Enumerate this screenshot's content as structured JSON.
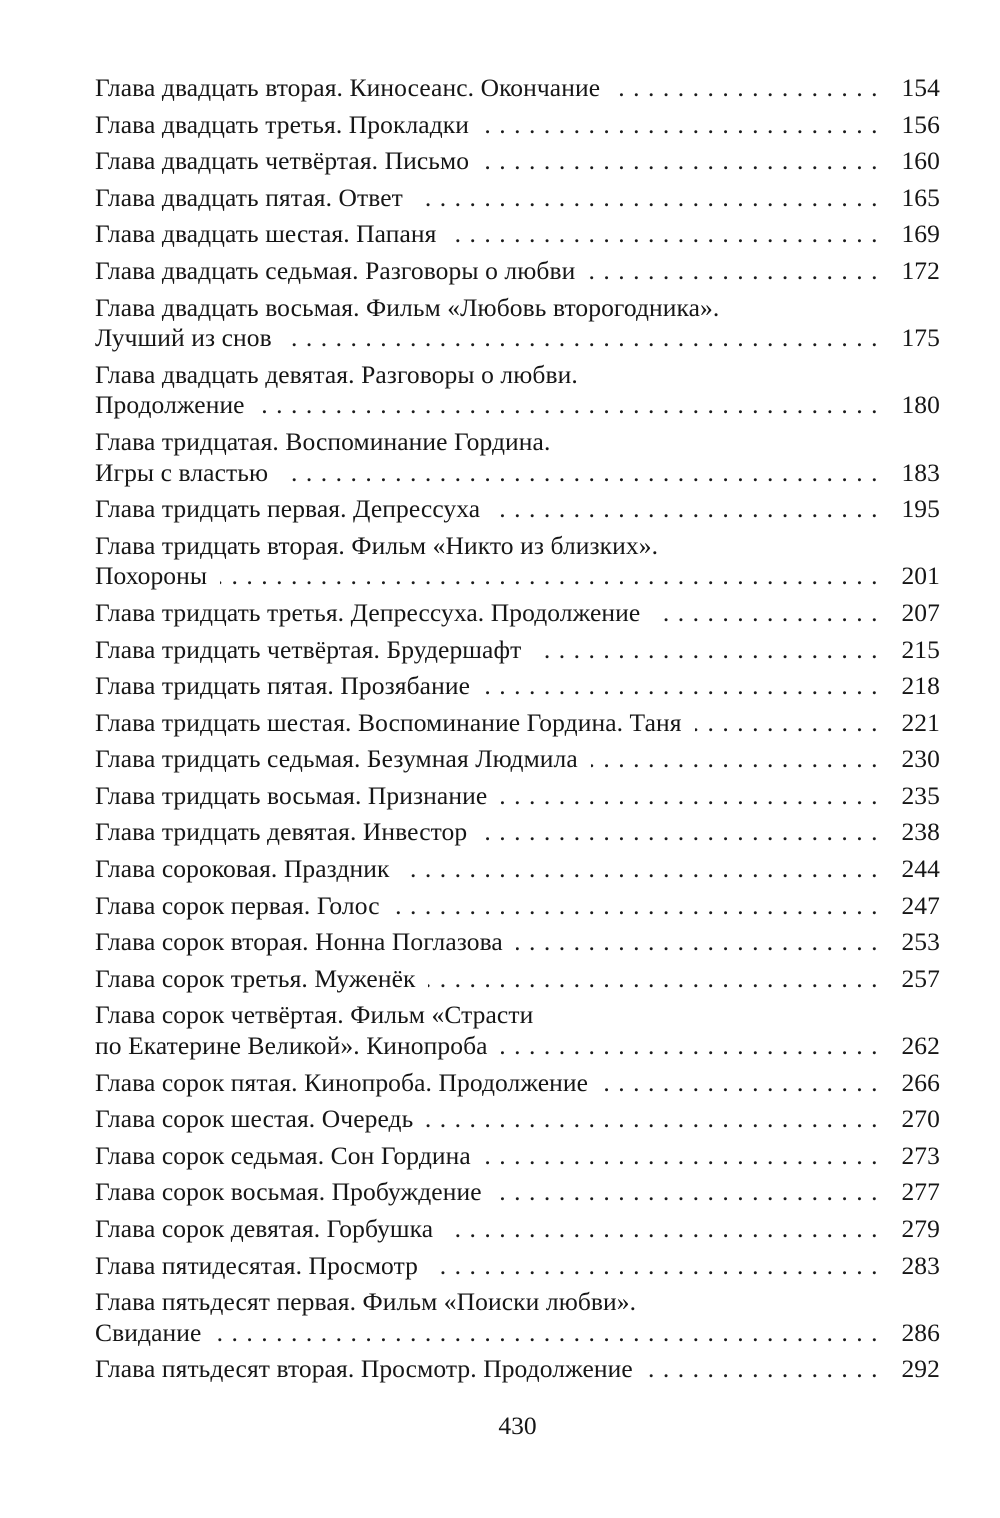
{
  "page": {
    "folio": "430",
    "entries": [
      {
        "lines": [
          "Глава двадцать вторая. Киносеанс. Окончание"
        ],
        "page": "154"
      },
      {
        "lines": [
          "Глава двадцать третья. Прокладки"
        ],
        "page": "156"
      },
      {
        "lines": [
          "Глава двадцать четвёртая. Письмо"
        ],
        "page": "160"
      },
      {
        "lines": [
          "Глава двадцать пятая. Ответ"
        ],
        "page": "165"
      },
      {
        "lines": [
          "Глава двадцать шестая. Папаня"
        ],
        "page": "169"
      },
      {
        "lines": [
          "Глава двадцать седьмая. Разговоры о любви"
        ],
        "page": "172"
      },
      {
        "lines": [
          "Глава двадцать восьмая. Фильм «Любовь второгодника».",
          "Лучший из снов"
        ],
        "page": "175"
      },
      {
        "lines": [
          "Глава двадцать девятая. Разговоры о любви.",
          "Продолжение"
        ],
        "page": "180"
      },
      {
        "lines": [
          "Глава тридцатая. Воспоминание Гордина.",
          "Игры с властью"
        ],
        "page": "183"
      },
      {
        "lines": [
          "Глава тридцать первая. Депрессуха"
        ],
        "page": "195"
      },
      {
        "lines": [
          "Глава тридцать вторая. Фильм «Никто из близких».",
          "Похороны"
        ],
        "page": "201"
      },
      {
        "lines": [
          "Глава тридцать третья. Депрессуха. Продолжение"
        ],
        "page": "207"
      },
      {
        "lines": [
          "Глава тридцать четвёртая. Брудершафт"
        ],
        "page": "215"
      },
      {
        "lines": [
          "Глава тридцать пятая. Прозябание"
        ],
        "page": "218"
      },
      {
        "lines": [
          "Глава тридцать шестая. Воспоминание Гордина. Таня"
        ],
        "page": "221"
      },
      {
        "lines": [
          "Глава тридцать седьмая. Безумная Людмила"
        ],
        "page": "230"
      },
      {
        "lines": [
          "Глава тридцать восьмая. Признание"
        ],
        "page": "235"
      },
      {
        "lines": [
          "Глава тридцать девятая. Инвестор"
        ],
        "page": "238"
      },
      {
        "lines": [
          "Глава сороковая. Праздник"
        ],
        "page": "244"
      },
      {
        "lines": [
          "Глава сорок первая. Голос"
        ],
        "page": "247"
      },
      {
        "lines": [
          "Глава сорок вторая. Нонна Поглазова"
        ],
        "page": "253"
      },
      {
        "lines": [
          "Глава сорок третья. Муженёк"
        ],
        "page": "257"
      },
      {
        "lines": [
          "Глава сорок четвёртая. Фильм «Страсти",
          "по Екатерине Великой». Кинопроба"
        ],
        "page": "262"
      },
      {
        "lines": [
          "Глава сорок пятая. Кинопроба. Продолжение"
        ],
        "page": "266"
      },
      {
        "lines": [
          "Глава сорок шестая. Очередь"
        ],
        "page": "270"
      },
      {
        "lines": [
          "Глава сорок седьмая. Сон Гордина"
        ],
        "page": "273"
      },
      {
        "lines": [
          "Глава сорок восьмая. Пробуждение"
        ],
        "page": "277"
      },
      {
        "lines": [
          "Глава сорок девятая. Горбушка"
        ],
        "page": "279"
      },
      {
        "lines": [
          "Глава пятидесятая. Просмотр"
        ],
        "page": "283"
      },
      {
        "lines": [
          "Глава пятьдесят первая. Фильм «Поиски любви».",
          "Свидание"
        ],
        "page": "286"
      },
      {
        "lines": [
          "Глава пятьдесят вторая. Просмотр. Продолжение"
        ],
        "page": "292"
      }
    ]
  }
}
